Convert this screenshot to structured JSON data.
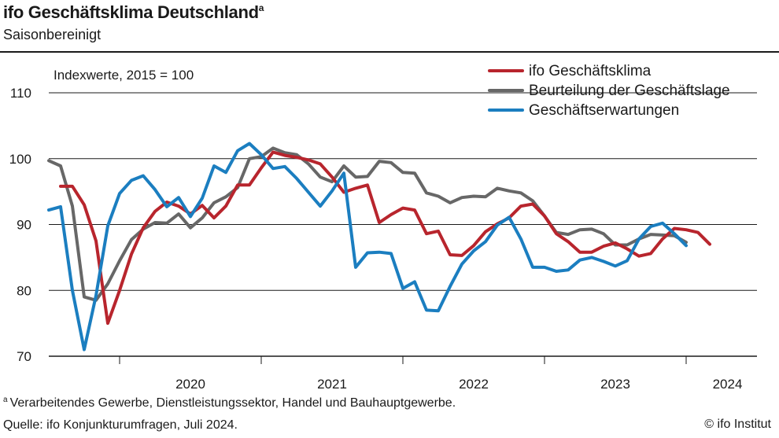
{
  "header": {
    "title": "ifo Geschäftsklima Deutschland",
    "title_marker": "a",
    "subtitle": "Saisonbereinigt"
  },
  "footer": {
    "footnote_marker": "a",
    "footnote": "Verarbeitendes Gewerbe, Dienstleistungssektor, Handel und Bauhauptgewerbe.",
    "source": "Quelle: ifo Konjunkturumfragen, Juli 2024.",
    "copyright": "© ifo Institut"
  },
  "chart_data": {
    "type": "line",
    "annotation": "Indexwerte, 2015 = 100",
    "ylim": [
      70,
      110
    ],
    "yticks": [
      70,
      80,
      90,
      100,
      110
    ],
    "grid": true,
    "legend_position": "top-right",
    "x_start": "2019-07",
    "x_end": "2024-07",
    "year_labels": [
      "2020",
      "2021",
      "2022",
      "2023",
      "2024"
    ],
    "series": [
      {
        "name": "ifo Geschäftsklima",
        "color": "#b8252d",
        "start": "2019-08",
        "values": [
          95.8,
          95.8,
          93.0,
          87.5,
          75.0,
          80.0,
          85.5,
          89.5,
          92.0,
          93.4,
          92.8,
          91.6,
          92.9,
          91.0,
          92.8,
          96.0,
          96.0,
          98.6,
          101.0,
          100.5,
          100.2,
          99.8,
          99.2,
          97.2,
          94.9,
          95.5,
          96.0,
          90.3,
          91.5,
          92.5,
          92.2,
          88.6,
          89.0,
          85.4,
          85.3,
          86.8,
          88.9,
          90.1,
          91.0,
          92.8,
          93.1,
          91.3,
          88.6,
          87.4,
          85.8,
          85.8,
          86.7,
          87.2,
          86.3,
          85.2,
          85.6,
          87.8,
          89.4,
          89.2,
          88.8,
          87.0
        ]
      },
      {
        "name": "Beurteilung der Geschäftslage",
        "color": "#676767",
        "start": "2019-07",
        "values": [
          99.7,
          98.9,
          92.8,
          79.0,
          78.5,
          81.0,
          84.5,
          87.7,
          89.3,
          90.3,
          90.2,
          91.6,
          89.5,
          91.0,
          93.3,
          94.2,
          95.6,
          100.0,
          100.3,
          101.6,
          100.9,
          100.6,
          99.2,
          97.2,
          96.5,
          98.9,
          97.2,
          97.3,
          99.6,
          99.4,
          97.9,
          97.8,
          94.8,
          94.3,
          93.3,
          94.1,
          94.3,
          94.2,
          95.5,
          95.1,
          94.8,
          93.6,
          91.3,
          88.8,
          88.5,
          89.2,
          89.3,
          88.6,
          86.9,
          86.9,
          87.8,
          88.5,
          88.4,
          88.3,
          87.3
        ]
      },
      {
        "name": "Geschäftserwartungen",
        "color": "#1b7ec0",
        "start": "2019-07",
        "values": [
          92.2,
          92.7,
          80.0,
          71.0,
          79.2,
          89.8,
          94.7,
          96.7,
          97.4,
          95.3,
          92.7,
          94.1,
          91.2,
          94.0,
          98.9,
          97.9,
          101.2,
          102.3,
          100.6,
          98.5,
          98.8,
          97.0,
          94.9,
          92.8,
          95.1,
          97.8,
          83.5,
          85.7,
          85.8,
          85.6,
          80.3,
          81.3,
          77.0,
          76.9,
          80.6,
          84.0,
          86.0,
          87.4,
          89.9,
          91.1,
          87.8,
          83.5,
          83.5,
          82.9,
          83.1,
          84.6,
          85.0,
          84.4,
          83.7,
          84.5,
          87.8,
          89.7,
          90.2,
          88.6,
          86.8
        ]
      }
    ]
  }
}
